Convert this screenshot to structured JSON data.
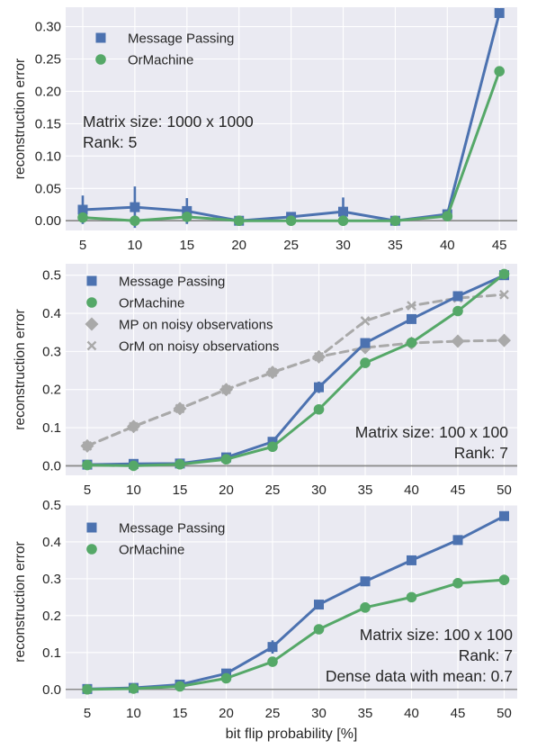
{
  "colors": {
    "panel_bg": "#EAEAF2",
    "grid": "#FFFFFF",
    "baseline": "#8C8C8C",
    "message_passing": "#4C72B0",
    "ormachine": "#55A868",
    "noisy": "#A9A9A9"
  },
  "chart_data": [
    {
      "type": "line",
      "categories": [
        5,
        10,
        15,
        20,
        25,
        30,
        35,
        40,
        45
      ],
      "ylim": [
        -0.015,
        0.33
      ],
      "yticks": [
        0.0,
        0.05,
        0.1,
        0.15,
        0.2,
        0.25,
        0.3
      ],
      "ytick_labels": [
        "0.00",
        "0.05",
        "0.10",
        "0.15",
        "0.20",
        "0.25",
        "0.30"
      ],
      "xtick_labels": [
        "5",
        "10",
        "15",
        "20",
        "25",
        "30",
        "35",
        "40",
        "45"
      ],
      "ylabel": "reconstruction error",
      "xlabel": "",
      "legend_position": "top-left",
      "annotation": [
        "Matrix size: 1000 x 1000",
        "Rank: 5"
      ],
      "annotation_align": "left",
      "series": [
        {
          "name": "Message Passing",
          "marker": "square",
          "color_key": "message_passing",
          "dashed": false,
          "values": [
            0.017,
            0.021,
            0.015,
            0.0,
            0.006,
            0.014,
            0.0,
            0.01,
            0.321
          ],
          "err": [
            0.022,
            0.032,
            0.02,
            0.0,
            0.006,
            0.022,
            0.0,
            0.0,
            0.0
          ]
        },
        {
          "name": "OrMachine",
          "marker": "circle",
          "color_key": "ormachine",
          "dashed": false,
          "values": [
            0.005,
            0.0,
            0.006,
            0.0,
            0.0,
            0.0,
            0.0,
            0.007,
            0.231
          ],
          "err": [
            0.0,
            0.0,
            0.0,
            0.0,
            0.0,
            0.0,
            0.0,
            0.0,
            0.005
          ]
        }
      ]
    },
    {
      "type": "line",
      "categories": [
        5,
        10,
        15,
        20,
        25,
        30,
        35,
        40,
        45,
        50
      ],
      "ylim": [
        -0.025,
        0.53
      ],
      "yticks": [
        0.0,
        0.1,
        0.2,
        0.3,
        0.4,
        0.5
      ],
      "ytick_labels": [
        "0.0",
        "0.1",
        "0.2",
        "0.3",
        "0.4",
        "0.5"
      ],
      "xtick_labels": [
        "5",
        "10",
        "15",
        "20",
        "25",
        "30",
        "35",
        "40",
        "45",
        "50"
      ],
      "ylabel": "reconstruction error",
      "xlabel": "",
      "legend_position": "top-left",
      "annotation": [
        "Matrix size: 100 x 100",
        "Rank: 7"
      ],
      "annotation_align": "right",
      "series": [
        {
          "name": "Message Passing",
          "marker": "square",
          "color_key": "message_passing",
          "dashed": false,
          "values": [
            0.003,
            0.005,
            0.006,
            0.022,
            0.063,
            0.206,
            0.322,
            0.385,
            0.445,
            0.5
          ],
          "err": [
            0.0,
            0.0,
            0.0,
            0.0,
            0.0,
            0.015,
            0.0,
            0.0,
            0.0,
            0.0
          ]
        },
        {
          "name": "OrMachine",
          "marker": "circle",
          "color_key": "ormachine",
          "dashed": false,
          "values": [
            0.002,
            0.0,
            0.004,
            0.017,
            0.05,
            0.148,
            0.27,
            0.323,
            0.406,
            0.503
          ],
          "err": [
            0.0,
            0.0,
            0.0,
            0.0,
            0.0,
            0.012,
            0.0,
            0.0,
            0.0,
            0.0
          ]
        },
        {
          "name": "MP on noisy observations",
          "marker": "diamond",
          "color_key": "noisy",
          "dashed": true,
          "values": [
            0.052,
            0.103,
            0.15,
            0.2,
            0.245,
            0.286,
            0.31,
            0.322,
            0.327,
            0.329
          ],
          "err": []
        },
        {
          "name": "OrM on noisy observations",
          "marker": "x",
          "color_key": "noisy",
          "dashed": true,
          "values": [
            0.052,
            0.103,
            0.15,
            0.2,
            0.245,
            0.286,
            0.38,
            0.42,
            0.44,
            0.449
          ],
          "err": []
        }
      ]
    },
    {
      "type": "line",
      "categories": [
        5,
        10,
        15,
        20,
        25,
        30,
        35,
        40,
        45,
        50
      ],
      "ylim": [
        -0.025,
        0.5
      ],
      "yticks": [
        0.0,
        0.1,
        0.2,
        0.3,
        0.4,
        0.5
      ],
      "ytick_labels": [
        "0.0",
        "0.1",
        "0.2",
        "0.3",
        "0.4",
        "0.5"
      ],
      "xtick_labels": [
        "5",
        "10",
        "15",
        "20",
        "25",
        "30",
        "35",
        "40",
        "45",
        "50"
      ],
      "ylabel": "reconstruction error",
      "xlabel": "bit flip probability [%]",
      "legend_position": "top-left",
      "annotation": [
        "Matrix size: 100 x 100",
        "Rank: 7",
        "Dense data with mean: 0.7"
      ],
      "annotation_align": "right",
      "series": [
        {
          "name": "Message Passing",
          "marker": "square",
          "color_key": "message_passing",
          "dashed": false,
          "values": [
            0.001,
            0.004,
            0.013,
            0.043,
            0.115,
            0.23,
            0.293,
            0.35,
            0.405,
            0.47
          ],
          "err": [
            0.0,
            0.0,
            0.0,
            0.0,
            0.018,
            0.0,
            0.0,
            0.0,
            0.0,
            0.0
          ]
        },
        {
          "name": "OrMachine",
          "marker": "circle",
          "color_key": "ormachine",
          "dashed": false,
          "values": [
            0.0,
            0.002,
            0.008,
            0.03,
            0.075,
            0.163,
            0.222,
            0.25,
            0.288,
            0.297
          ],
          "err": [
            0.0,
            0.0,
            0.0,
            0.0,
            0.0,
            0.0,
            0.0,
            0.008,
            0.008,
            0.014
          ]
        }
      ]
    }
  ]
}
